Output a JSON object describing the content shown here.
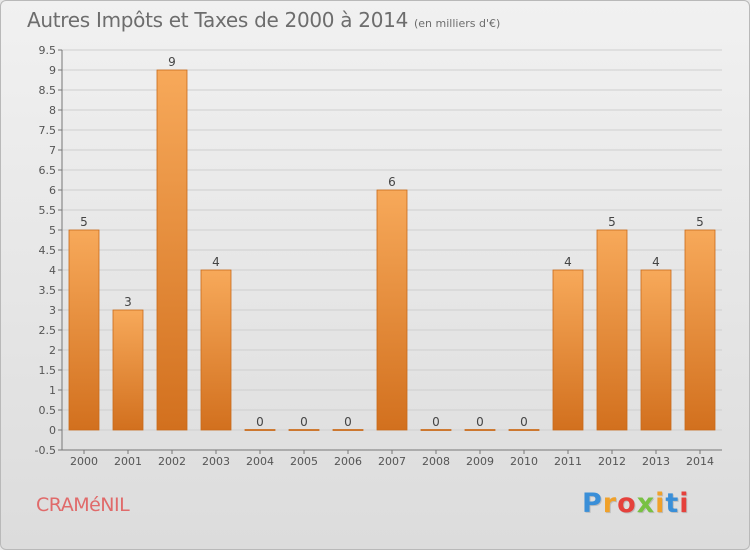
{
  "title": "Autres Impôts et Taxes de 2000 à 2014",
  "unit_note": "(en milliers d'€)",
  "commune": "CRAMéNIL",
  "logo": "Proxiti",
  "colors": {
    "bar_top": "#f7a95a",
    "bar_bottom": "#d2701e",
    "bar_stroke": "#c86a1a",
    "grid": "#cfcfcf"
  },
  "chart_data": {
    "type": "bar",
    "categories": [
      "2000",
      "2001",
      "2002",
      "2003",
      "2004",
      "2005",
      "2006",
      "2007",
      "2008",
      "2009",
      "2010",
      "2011",
      "2012",
      "2013",
      "2014"
    ],
    "values": [
      5,
      3,
      9,
      4,
      0,
      0,
      0,
      6,
      0,
      0,
      0,
      4,
      5,
      4,
      5
    ],
    "value_labels": [
      "5",
      "3",
      "9",
      "4",
      "0",
      "0",
      "0",
      "6",
      "0",
      "0",
      "0",
      "4",
      "5",
      "4",
      "5"
    ],
    "y_ticks": [
      "-0.5",
      "0",
      "0.5",
      "1",
      "1.5",
      "2",
      "2.5",
      "3",
      "3.5",
      "4",
      "4.5",
      "5",
      "5.5",
      "6",
      "6.5",
      "7",
      "7.5",
      "8",
      "8.5",
      "9",
      "9.5"
    ],
    "ylim": [
      -0.5,
      9.5
    ],
    "grid": true,
    "title": "Autres Impôts et Taxes de 2000 à 2014",
    "xlabel": "",
    "ylabel": ""
  }
}
